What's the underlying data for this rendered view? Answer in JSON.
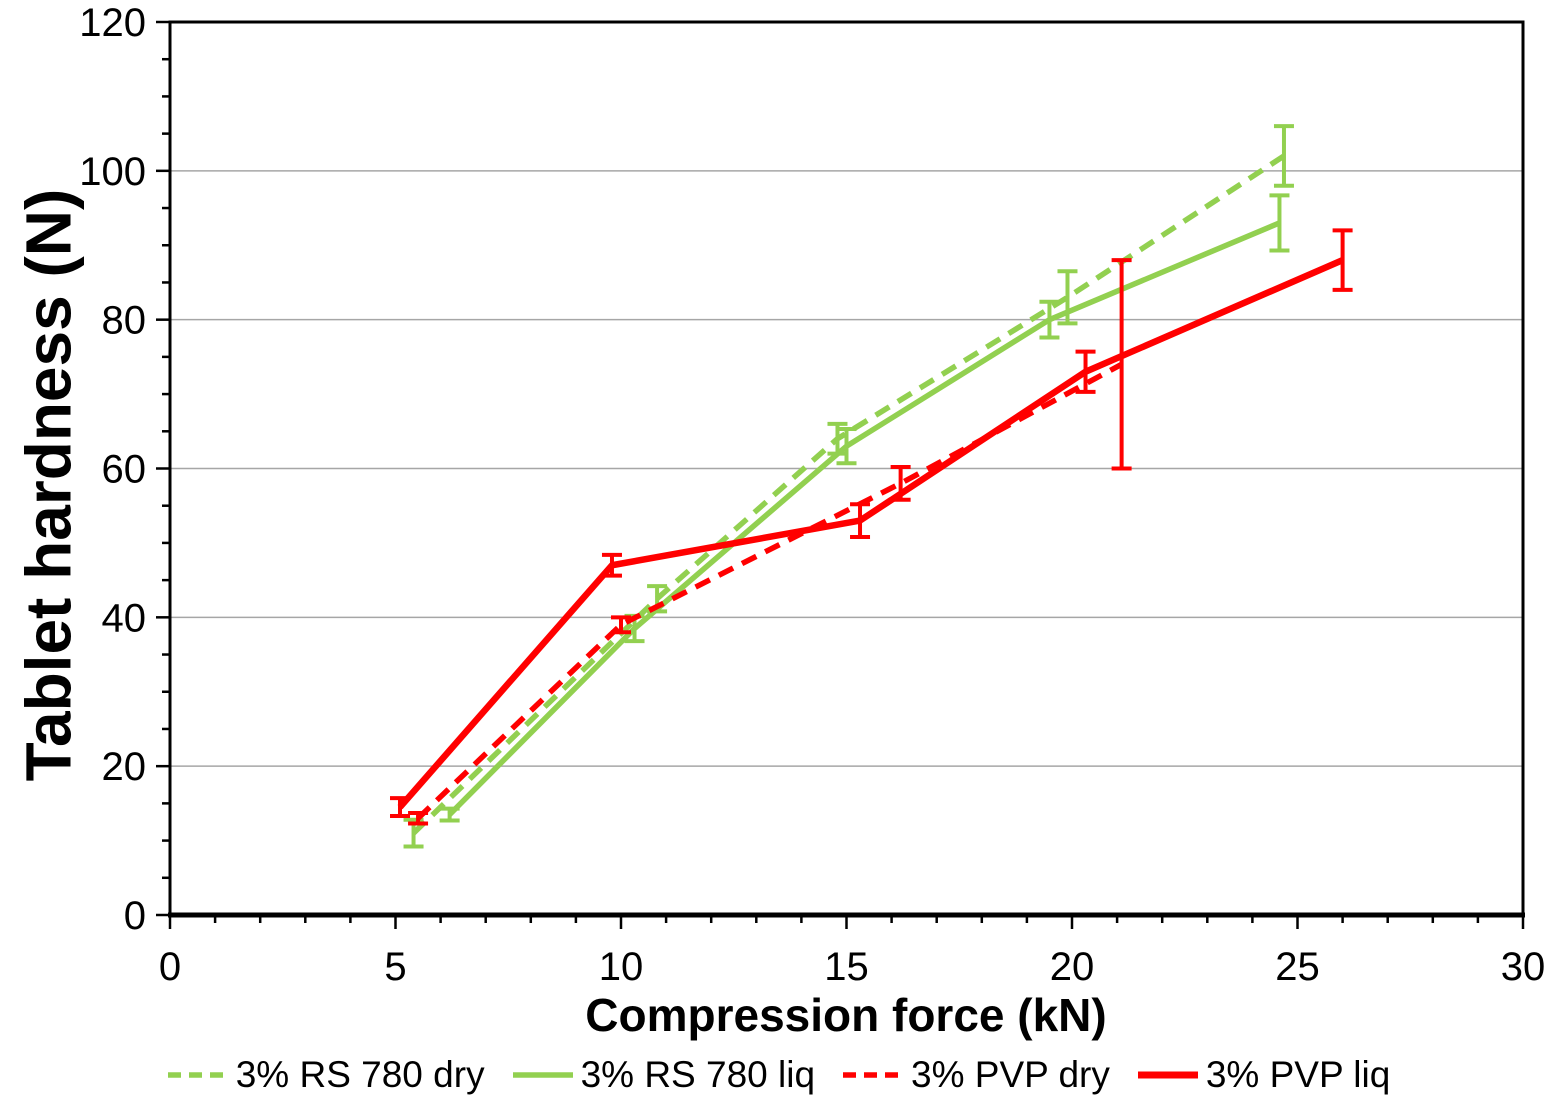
{
  "chart_data": {
    "type": "line",
    "title": "",
    "xlabel": "Compression force (kN)",
    "ylabel": "Tablet hardness (N)",
    "xlim": [
      0,
      30
    ],
    "ylim": [
      0,
      120
    ],
    "x_ticks": [
      0,
      5,
      10,
      15,
      20,
      25,
      30
    ],
    "y_ticks": [
      0,
      20,
      40,
      60,
      80,
      100,
      120
    ],
    "x_minor_step": 1,
    "y_minor_step": 5,
    "grid": "horizontal-major-only",
    "legend_position": "bottom",
    "error_bars": "vertical, capped, same color as series",
    "series": [
      {
        "name": "3% RS 780 dry",
        "color": "#92D050",
        "style": "dashed",
        "x": [
          5.4,
          10.8,
          14.8,
          19.9,
          24.7
        ],
        "y": [
          11,
          42.5,
          64,
          83,
          102
        ],
        "yerr": [
          1.8,
          1.7,
          2.0,
          3.5,
          4.0
        ]
      },
      {
        "name": "3% RS 780 liq",
        "color": "#92D050",
        "style": "solid",
        "x": [
          6.2,
          10.3,
          15.0,
          19.5,
          24.6
        ],
        "y": [
          13.5,
          38.5,
          63,
          80,
          93
        ],
        "yerr": [
          0.8,
          1.7,
          2.3,
          2.4,
          3.7
        ]
      },
      {
        "name": "3% PVP dry",
        "color": "#FF0000",
        "style": "dashed",
        "x": [
          5.5,
          10.0,
          16.2,
          21.1
        ],
        "y": [
          13,
          39,
          58,
          74
        ],
        "yerr": [
          0.7,
          1.0,
          2.2,
          14.0
        ]
      },
      {
        "name": "3% PVP liq",
        "color": "#FF0000",
        "style": "solid",
        "x": [
          5.1,
          9.8,
          15.3,
          20.3,
          26.0
        ],
        "y": [
          14.5,
          47,
          53,
          73,
          88
        ],
        "yerr": [
          1.2,
          1.4,
          2.2,
          2.7,
          4.0
        ]
      }
    ]
  },
  "colors": {
    "green_series": "#92D050",
    "red_series": "#FF0000",
    "gridline": "#A6A6A6",
    "axis": "#000000",
    "background": "#FFFFFF"
  }
}
